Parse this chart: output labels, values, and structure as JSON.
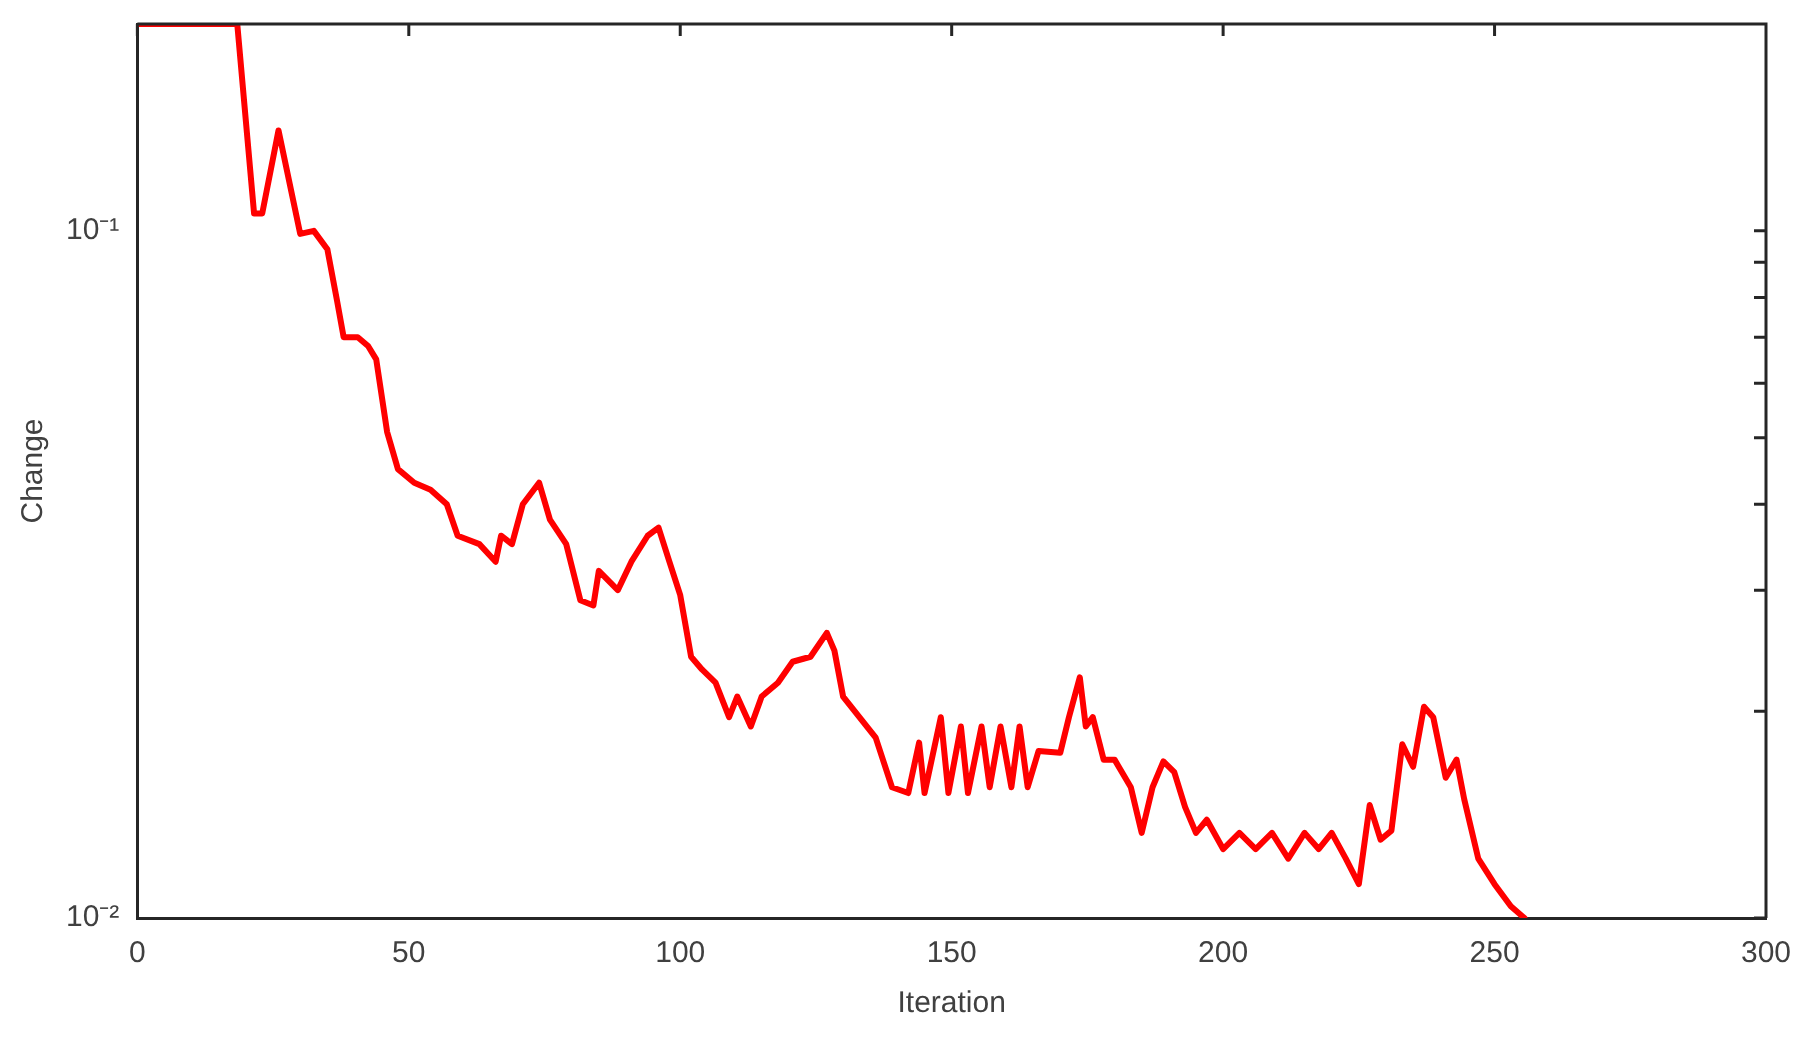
{
  "chart_data": {
    "type": "line",
    "xlabel": "Iteration",
    "ylabel": "Change",
    "log": "y",
    "grid": false,
    "legend": false,
    "marker": "none",
    "line_style": "solid",
    "xlim": [
      0,
      300
    ],
    "xticks": [
      0,
      50,
      100,
      150,
      200,
      250,
      300
    ],
    "ylim": [
      0.01,
      0.2
    ],
    "yticks": [
      {
        "value": 0.01,
        "label": "10⁻²"
      },
      {
        "value": 0.02,
        "label": null
      },
      {
        "value": 0.03,
        "label": null
      },
      {
        "value": 0.04,
        "label": null
      },
      {
        "value": 0.05,
        "label": null
      },
      {
        "value": 0.06,
        "label": null
      },
      {
        "value": 0.07,
        "label": null
      },
      {
        "value": 0.08,
        "label": null
      },
      {
        "value": 0.09,
        "label": null
      },
      {
        "value": 0.1,
        "label": "10⁻¹"
      },
      {
        "value": 0.2,
        "label": null
      }
    ],
    "series": [
      {
        "color": "#ff0000",
        "x": [
          0,
          18.4,
          21.5,
          23,
          26,
          30,
          32.5,
          35,
          36.8,
          38,
          40.6,
          42.5,
          44,
          46,
          48,
          51,
          54,
          57,
          59,
          63,
          66,
          67,
          69,
          71,
          74,
          76,
          79,
          81.6,
          84,
          85,
          88.5,
          91,
          94,
          96,
          98,
          100,
          102,
          104,
          106.5,
          109,
          110.5,
          113,
          115,
          118,
          120.7,
          124,
          127,
          128.4,
          130,
          133,
          136,
          139,
          142,
          144,
          145,
          148,
          149.4,
          151.7,
          153,
          155.5,
          157,
          159,
          161,
          162.5,
          164,
          166,
          170,
          171.6,
          173.6,
          174.7,
          176,
          178,
          180,
          183,
          185,
          187,
          189,
          191,
          193,
          195,
          197,
          200,
          203,
          206,
          209,
          212,
          215,
          217.6,
          220,
          222.6,
          225,
          227,
          229,
          231,
          233,
          235,
          237,
          238.7,
          241,
          243,
          244.4,
          247,
          250,
          253,
          255.5
        ],
        "values": [
          0.2,
          0.2,
          0.106,
          0.106,
          0.14,
          0.099,
          0.1,
          0.094,
          0.079,
          0.07,
          0.07,
          0.068,
          0.065,
          0.051,
          0.045,
          0.043,
          0.042,
          0.04,
          0.036,
          0.035,
          0.033,
          0.036,
          0.035,
          0.04,
          0.043,
          0.038,
          0.035,
          0.029,
          0.0285,
          0.032,
          0.03,
          0.033,
          0.036,
          0.037,
          0.033,
          0.0295,
          0.024,
          0.023,
          0.022,
          0.0196,
          0.021,
          0.019,
          0.021,
          0.022,
          0.0236,
          0.024,
          0.026,
          0.0245,
          0.021,
          0.0196,
          0.0183,
          0.0155,
          0.0152,
          0.018,
          0.0152,
          0.0196,
          0.0152,
          0.019,
          0.0152,
          0.019,
          0.0155,
          0.019,
          0.0155,
          0.019,
          0.0155,
          0.0175,
          0.0174,
          0.0196,
          0.0224,
          0.019,
          0.0196,
          0.017,
          0.017,
          0.0155,
          0.0133,
          0.0155,
          0.0169,
          0.0163,
          0.0145,
          0.0133,
          0.0139,
          0.0126,
          0.0133,
          0.0126,
          0.0133,
          0.0122,
          0.0133,
          0.0126,
          0.0133,
          0.0122,
          0.0112,
          0.0146,
          0.013,
          0.0134,
          0.0179,
          0.0166,
          0.0203,
          0.0196,
          0.016,
          0.017,
          0.0149,
          0.0122,
          0.0112,
          0.0104,
          0.01
        ]
      }
    ]
  }
}
